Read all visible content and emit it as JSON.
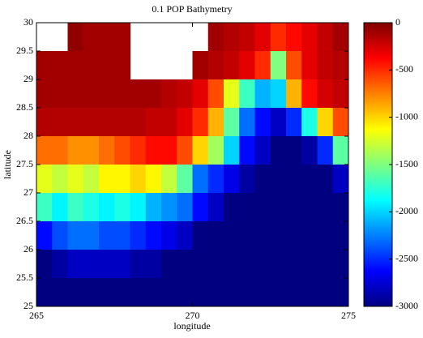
{
  "chart_data": {
    "type": "heatmap",
    "title": "0.1 POP Bathymetry",
    "xlabel": "longitude",
    "ylabel": "latitude",
    "colormap": "jet",
    "clim": [
      -3000,
      0
    ],
    "cticks": [
      0,
      -500,
      -1000,
      -1500,
      -2000,
      -2500,
      -3000
    ],
    "xlim": [
      265,
      275
    ],
    "xticks": [
      265,
      270,
      275
    ],
    "ylim": [
      25,
      30
    ],
    "yticks": [
      25,
      25.5,
      26,
      26.5,
      27,
      27.5,
      28,
      28.5,
      29,
      29.5,
      30
    ],
    "x": [
      265.25,
      265.75,
      266.25,
      266.75,
      267.25,
      267.75,
      268.25,
      268.75,
      269.25,
      269.75,
      270.25,
      270.75,
      271.25,
      271.75,
      272.25,
      272.75,
      273.25,
      273.75,
      274.25,
      274.75
    ],
    "y": [
      29.75,
      29.25,
      28.75,
      28.25,
      27.75,
      27.25,
      26.75,
      26.25,
      25.75,
      25.25
    ],
    "z": [
      [
        null,
        null,
        -50,
        -100,
        -100,
        -100,
        null,
        null,
        null,
        null,
        null,
        -100,
        -150,
        -200,
        -300,
        -500,
        -400,
        -300,
        -200,
        -100
      ],
      [
        -100,
        -100,
        -100,
        -100,
        -100,
        -100,
        null,
        null,
        null,
        null,
        -100,
        -150,
        -200,
        -300,
        -500,
        -1500,
        -600,
        -300,
        -200,
        -150
      ],
      [
        -100,
        -100,
        -100,
        -100,
        -100,
        -100,
        -100,
        -100,
        -150,
        -200,
        -300,
        -600,
        -1200,
        -1700,
        -2100,
        -2000,
        -900,
        -400,
        -250,
        -200
      ],
      [
        -150,
        -150,
        -150,
        -150,
        -150,
        -150,
        -150,
        -200,
        -200,
        -300,
        -500,
        -900,
        -1600,
        -2300,
        -2600,
        -2800,
        -2500,
        -1800,
        -1000,
        -600
      ],
      [
        -700,
        -700,
        -800,
        -800,
        -700,
        -600,
        -500,
        -400,
        -400,
        -600,
        -1000,
        -1400,
        -2000,
        -2600,
        -2800,
        -3000,
        -3000,
        -2900,
        -2500,
        -1600
      ],
      [
        -1200,
        -1300,
        -1200,
        -1300,
        -1100,
        -1100,
        -1000,
        -1100,
        -1300,
        -1600,
        -2300,
        -2500,
        -2700,
        -2900,
        -3000,
        -3000,
        -3000,
        -3000,
        -3000,
        -2800
      ],
      [
        -1700,
        -1900,
        -1700,
        -1800,
        -1900,
        -1800,
        -1900,
        -2100,
        -2200,
        -2300,
        -2600,
        -2800,
        -3000,
        -3000,
        -3000,
        -3000,
        -3000,
        -3000,
        -3000,
        -3000
      ],
      [
        -2600,
        -2400,
        -2300,
        -2300,
        -2400,
        -2400,
        -2500,
        -2600,
        -2700,
        -2800,
        -3000,
        -3000,
        -3000,
        -3000,
        -3000,
        -3000,
        -3000,
        -3000,
        -3000,
        -3000
      ],
      [
        -3000,
        -2900,
        -2800,
        -2800,
        -2800,
        -2800,
        -2900,
        -2900,
        -3000,
        -3000,
        -3000,
        -3000,
        -3000,
        -3000,
        -3000,
        -3000,
        -3000,
        -3000,
        -3000,
        -3000
      ],
      [
        -3000,
        -3000,
        -3000,
        -3000,
        -3000,
        -3000,
        -3000,
        -3000,
        -3000,
        -3000,
        -3000,
        -3000,
        -3000,
        -3000,
        -3000,
        -3000,
        -3000,
        -3000,
        -3000,
        -3000
      ]
    ]
  }
}
